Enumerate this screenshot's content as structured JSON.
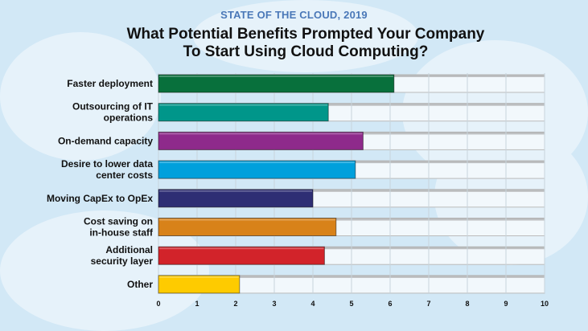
{
  "chart_data": {
    "type": "bar",
    "orientation": "horizontal",
    "subtitle": "STATE OF THE CLOUD, 2019",
    "title": "What Potential Benefits Prompted Your Company To Start Using Cloud Computing?",
    "categories": [
      [
        "Faster deployment"
      ],
      [
        "Outsourcing of IT",
        "operations"
      ],
      [
        "On-demand capacity"
      ],
      [
        "Desire to lower data",
        "center costs"
      ],
      [
        "Moving CapEx to OpEx"
      ],
      [
        "Cost saving on",
        "in-house staff"
      ],
      [
        "Additional",
        "security layer"
      ],
      [
        "Other"
      ]
    ],
    "values": [
      6.1,
      4.4,
      5.3,
      5.1,
      4.0,
      4.6,
      4.3,
      2.1
    ],
    "colors": [
      "#08703c",
      "#00968a",
      "#8e2a8b",
      "#00a0dc",
      "#2e2e74",
      "#d88219",
      "#d2232a",
      "#fecb00"
    ],
    "xlim": [
      0,
      10
    ],
    "xticks": [
      "0",
      "1",
      "2",
      "3",
      "4",
      "5",
      "6",
      "7",
      "8",
      "9",
      "10"
    ],
    "grid": true,
    "xlabel": "",
    "ylabel": ""
  }
}
